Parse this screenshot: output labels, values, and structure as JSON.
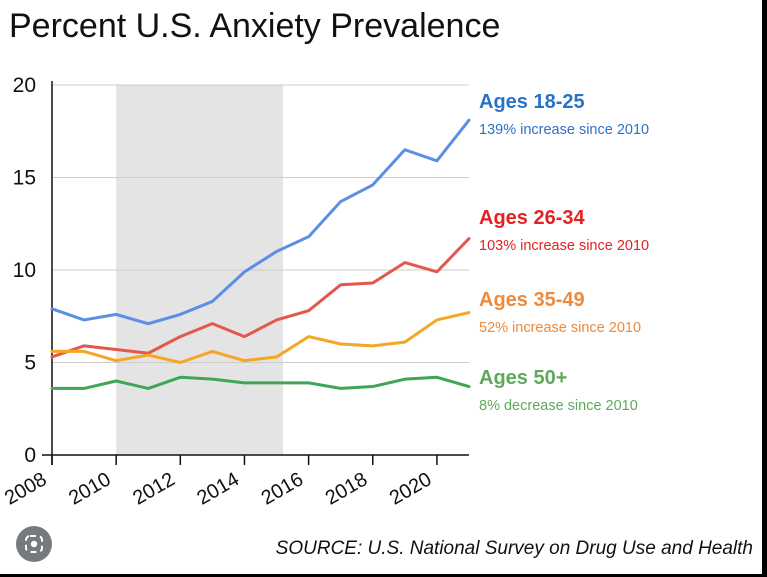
{
  "page": {
    "source": "SOURCE: U.S. National Survey on Drug Use and Health",
    "lens_icon": "lens-icon"
  },
  "chart_data": {
    "type": "line",
    "title": "Percent U.S. Anxiety Prevalence",
    "xlabel": "",
    "ylabel": "",
    "xlim": [
      2008,
      2021
    ],
    "ylim": [
      0,
      20
    ],
    "yticks": [
      0,
      5,
      10,
      15,
      20
    ],
    "xticks": [
      2008,
      2010,
      2012,
      2014,
      2016,
      2018,
      2020
    ],
    "grid": "horizontal",
    "shaded_region": [
      2010,
      2015.2
    ],
    "shaded_color": "#e4e4e4",
    "x": [
      2008,
      2009,
      2010,
      2011,
      2012,
      2013,
      2014,
      2015,
      2016,
      2017,
      2018,
      2019,
      2020,
      2021
    ],
    "series": [
      {
        "name": "Ages 18-25",
        "annotation": "139% increase since 2010",
        "color": "#5b8fe6",
        "label_color": "#2a72c8",
        "values": [
          7.9,
          7.3,
          7.6,
          7.1,
          7.6,
          8.3,
          9.9,
          11.0,
          11.8,
          13.7,
          14.6,
          16.5,
          15.9,
          18.1
        ]
      },
      {
        "name": "Ages 26-34",
        "annotation": "103% increase since 2010",
        "color": "#e5574b",
        "label_color": "#e32222",
        "values": [
          5.3,
          5.9,
          5.7,
          5.5,
          6.4,
          7.1,
          6.4,
          7.3,
          7.8,
          9.2,
          9.3,
          10.4,
          9.9,
          11.7
        ]
      },
      {
        "name": "Ages 35-49",
        "annotation": "52% increase since 2010",
        "color": "#f5a623",
        "label_color": "#ee8a3a",
        "values": [
          5.6,
          5.6,
          5.1,
          5.4,
          5.0,
          5.6,
          5.1,
          5.3,
          6.4,
          6.0,
          5.9,
          6.1,
          7.3,
          7.7
        ]
      },
      {
        "name": "Ages 50+",
        "annotation": "8% decrease since 2010",
        "color": "#3ea654",
        "label_color": "#5fa85c",
        "values": [
          3.6,
          3.6,
          4.0,
          3.6,
          4.2,
          4.1,
          3.9,
          3.9,
          3.9,
          3.6,
          3.7,
          4.1,
          4.2,
          3.7
        ]
      }
    ]
  }
}
